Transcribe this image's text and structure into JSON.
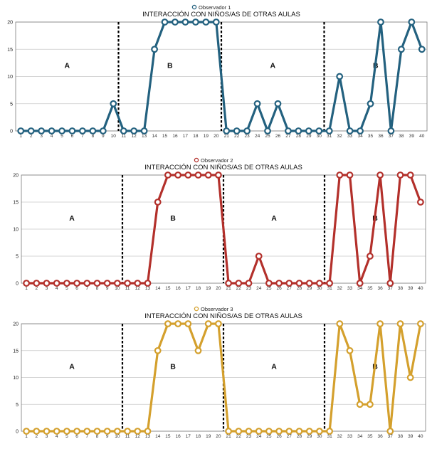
{
  "chart_data": [
    {
      "type": "line",
      "title": "INTERACCIÓN CON NIÑOS/AS DE OTRAS AULAS",
      "legend": "Observador 1",
      "legend_placement": "top-center",
      "color": "#23617f",
      "x": [
        1,
        2,
        3,
        4,
        5,
        6,
        7,
        8,
        9,
        10,
        11,
        12,
        13,
        14,
        15,
        16,
        17,
        18,
        19,
        20,
        21,
        22,
        23,
        24,
        25,
        26,
        27,
        28,
        29,
        30,
        31,
        32,
        33,
        34,
        35,
        36,
        37,
        38,
        39,
        40
      ],
      "values": [
        0,
        0,
        0,
        0,
        0,
        0,
        0,
        0,
        0,
        5,
        0,
        0,
        0,
        15,
        20,
        20,
        20,
        20,
        20,
        20,
        0,
        0,
        0,
        5,
        0,
        5,
        0,
        0,
        0,
        0,
        0,
        10,
        0,
        0,
        5,
        20,
        0,
        15,
        20,
        15
      ],
      "yticks": [
        0,
        5,
        10,
        15,
        20
      ],
      "ylim": [
        0,
        20
      ],
      "phase_dividers": [
        10.5,
        20.5,
        30.5
      ],
      "phases": [
        {
          "label": "A",
          "x": 5.5
        },
        {
          "label": "B",
          "x": 15.5
        },
        {
          "label": "A",
          "x": 25.5
        },
        {
          "label": "B",
          "x": 35.5
        }
      ]
    },
    {
      "type": "line",
      "title": "INTERACCIÓN CON NIÑOS/AS DE OTRAS AULAS",
      "legend": "Observador 2",
      "legend_placement": "top-center",
      "color": "#b3302b",
      "x": [
        1,
        2,
        3,
        4,
        5,
        6,
        7,
        8,
        9,
        10,
        11,
        12,
        13,
        14,
        15,
        16,
        17,
        18,
        19,
        20,
        21,
        22,
        23,
        24,
        25,
        26,
        27,
        28,
        29,
        30,
        31,
        32,
        33,
        34,
        35,
        36,
        37,
        38,
        39,
        40
      ],
      "values": [
        0,
        0,
        0,
        0,
        0,
        0,
        0,
        0,
        0,
        0,
        0,
        0,
        0,
        15,
        20,
        20,
        20,
        20,
        20,
        20,
        0,
        0,
        0,
        5,
        0,
        0,
        0,
        0,
        0,
        0,
        0,
        20,
        20,
        0,
        5,
        20,
        0,
        20,
        20,
        15
      ],
      "yticks": [
        0,
        5,
        10,
        15,
        20
      ],
      "ylim": [
        0,
        20
      ],
      "phase_dividers": [
        10.5,
        20.5,
        30.5
      ],
      "phases": [
        {
          "label": "A",
          "x": 5.5
        },
        {
          "label": "B",
          "x": 15.5
        },
        {
          "label": "A",
          "x": 25.5
        },
        {
          "label": "B",
          "x": 35.5
        }
      ]
    },
    {
      "type": "line",
      "title": "INTERACCIÓN CON NIÑOS/AS DE OTRAS AULAS",
      "legend": "Observador 3",
      "legend_placement": "top-center",
      "color": "#d4a02d",
      "x": [
        1,
        2,
        3,
        4,
        5,
        6,
        7,
        8,
        9,
        10,
        11,
        12,
        13,
        14,
        15,
        16,
        17,
        18,
        19,
        20,
        21,
        22,
        23,
        24,
        25,
        26,
        27,
        28,
        29,
        30,
        31,
        32,
        33,
        34,
        35,
        36,
        37,
        38,
        39,
        40
      ],
      "values": [
        0,
        0,
        0,
        0,
        0,
        0,
        0,
        0,
        0,
        0,
        0,
        0,
        0,
        15,
        20,
        20,
        20,
        15,
        20,
        20,
        0,
        0,
        0,
        0,
        0,
        0,
        0,
        0,
        0,
        0,
        0,
        20,
        15,
        5,
        5,
        20,
        0,
        20,
        10,
        20
      ],
      "yticks": [
        0,
        5,
        10,
        15,
        20
      ],
      "ylim": [
        0,
        20
      ],
      "phase_dividers": [
        10.5,
        20.5,
        30.5
      ],
      "phases": [
        {
          "label": "A",
          "x": 5.5
        },
        {
          "label": "B",
          "x": 15.5
        },
        {
          "label": "A",
          "x": 25.5
        },
        {
          "label": "B",
          "x": 35.5
        }
      ]
    }
  ]
}
